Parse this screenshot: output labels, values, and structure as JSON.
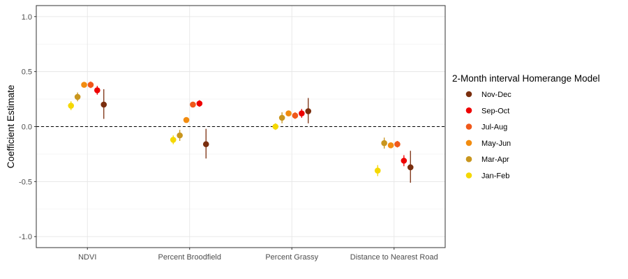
{
  "chart_data": {
    "type": "scatter",
    "title": "",
    "xlabel": "",
    "ylabel": "Coefficient Estimate",
    "ylim": [
      -1.1,
      1.1
    ],
    "yticks": [
      -1.0,
      -0.5,
      0.0,
      0.5,
      1.0
    ],
    "ytick_labels": [
      "-1.0",
      "-0.5",
      "0.0",
      "0.5",
      "1.0"
    ],
    "grid": true,
    "reference_line": 0,
    "categories": [
      "NDVI",
      "Percent Broodfield",
      "Percent Grassy",
      "Distance to Nearest Road"
    ],
    "legend": {
      "title": "2-Month interval Homerange Model",
      "placement": "right",
      "order": [
        "Nov-Dec",
        "Sep-Oct",
        "Jul-Aug",
        "May-Jun",
        "Mar-Apr",
        "Jan-Feb"
      ]
    },
    "series": [
      {
        "name": "Jan-Feb",
        "color": "#f5d800",
        "values": [
          0.19,
          -0.12,
          0.0,
          -0.4
        ],
        "lower": [
          0.15,
          -0.16,
          -0.03,
          -0.45
        ],
        "upper": [
          0.23,
          -0.08,
          0.03,
          -0.35
        ]
      },
      {
        "name": "Mar-Apr",
        "color": "#c9961e",
        "values": [
          0.27,
          -0.08,
          0.08,
          -0.15
        ],
        "lower": [
          0.23,
          -0.13,
          0.03,
          -0.2
        ],
        "upper": [
          0.31,
          -0.03,
          0.13,
          -0.1
        ]
      },
      {
        "name": "May-Jun",
        "color": "#f28c0f",
        "values": [
          0.38,
          0.06,
          0.12,
          -0.17
        ],
        "lower": [
          0.36,
          0.04,
          0.1,
          -0.19
        ],
        "upper": [
          0.4,
          0.08,
          0.14,
          -0.15
        ]
      },
      {
        "name": "Jul-Aug",
        "color": "#f0581a",
        "values": [
          0.38,
          0.2,
          0.1,
          -0.16
        ],
        "lower": [
          0.35,
          0.18,
          0.07,
          -0.19
        ],
        "upper": [
          0.41,
          0.22,
          0.13,
          -0.13
        ]
      },
      {
        "name": "Sep-Oct",
        "color": "#ee0000",
        "values": [
          0.33,
          0.21,
          0.12,
          -0.31
        ],
        "lower": [
          0.29,
          0.18,
          0.08,
          -0.36
        ],
        "upper": [
          0.37,
          0.24,
          0.16,
          -0.26
        ]
      },
      {
        "name": "Nov-Dec",
        "color": "#7a2e0e",
        "values": [
          0.2,
          -0.16,
          0.14,
          -0.37
        ],
        "lower": [
          0.07,
          -0.29,
          0.03,
          -0.51
        ],
        "upper": [
          0.34,
          -0.02,
          0.26,
          -0.22
        ]
      }
    ]
  }
}
